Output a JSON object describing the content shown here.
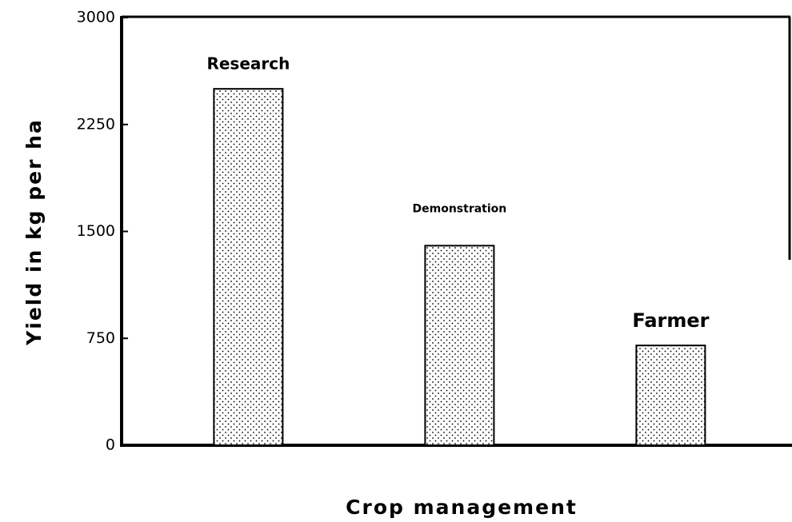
{
  "chart_data": {
    "type": "bar",
    "categories": [
      "Research",
      "Demonstration",
      "Farmer"
    ],
    "values": [
      2500,
      1400,
      700
    ],
    "color": "#000000",
    "xlabel": "Crop management",
    "ylabel": "Yield in kg per ha",
    "ylim": [
      0,
      3000
    ],
    "yticks": [
      0,
      750,
      1500,
      2250,
      3000
    ],
    "grid": false
  }
}
